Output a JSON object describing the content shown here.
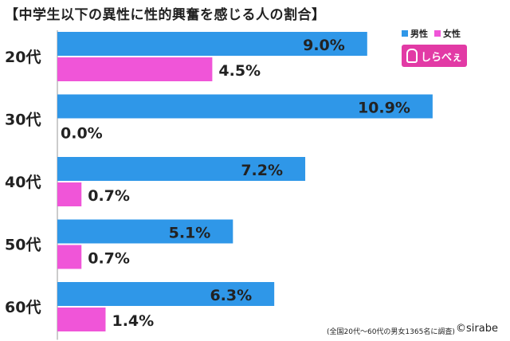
{
  "chart_data": {
    "type": "bar",
    "orientation": "horizontal",
    "title": "【中学生以下の異性に性的興奮を感じる人の割合】",
    "categories": [
      "20代",
      "30代",
      "40代",
      "50代",
      "60代"
    ],
    "series": [
      {
        "name": "男性",
        "values": [
          9.0,
          10.9,
          7.2,
          5.1,
          6.3
        ],
        "labels": [
          "9.0%",
          "10.9%",
          "7.2%",
          "5.1%",
          "6.3%"
        ],
        "color": "#2f97e8"
      },
      {
        "name": "女性",
        "values": [
          4.5,
          0.0,
          0.7,
          0.7,
          1.4
        ],
        "labels": [
          "4.5%",
          "0.0%",
          "0.7%",
          "0.7%",
          "1.4%"
        ],
        "color": "#f055d8"
      }
    ],
    "xlim": [
      0,
      12
    ],
    "xlabel": "",
    "ylabel": "",
    "legend_position": "top-right",
    "grid": false
  },
  "logo_text": "しらべぇ",
  "footnote": "(全国20代〜60代の男女1365名に調査)",
  "credit": "©sirabe"
}
